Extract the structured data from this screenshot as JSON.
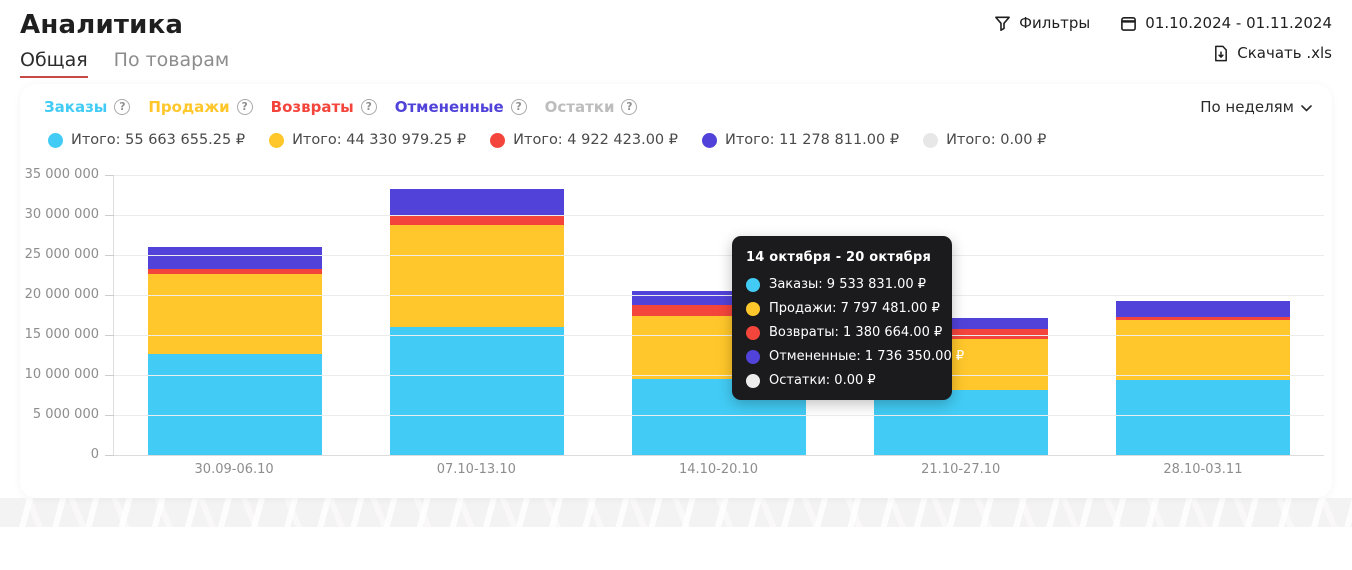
{
  "header": {
    "title": "Аналитика",
    "tabs": [
      {
        "label": "Общая",
        "active": true
      },
      {
        "label": "По товарам",
        "active": false
      }
    ],
    "filters_label": "Фильтры",
    "date_range": "01.10.2024 - 01.11.2024",
    "download_label": "Скачать .xls",
    "accent_color": "#c64a45"
  },
  "panel": {
    "interval_select": "По неделям",
    "metrics": [
      {
        "key": "orders",
        "label": "Заказы",
        "color": "#42CCF5",
        "total": "Итого: 55 663 655.25 ₽",
        "muted": false
      },
      {
        "key": "sales",
        "label": "Продажи",
        "color": "#FFC72B",
        "total": "Итого: 44 330 979.25 ₽",
        "muted": false
      },
      {
        "key": "returns",
        "label": "Возвраты",
        "color": "#F4453C",
        "total": "Итого: 4 922 423.00 ₽",
        "muted": false
      },
      {
        "key": "cancelled",
        "label": "Отмененные",
        "color": "#5143D9",
        "total": "Итого: 11 278 811.00 ₽",
        "muted": false
      },
      {
        "key": "stock",
        "label": "Остатки",
        "color": "#E7E7E7",
        "total": "Итого: 0.00 ₽",
        "muted": true
      }
    ]
  },
  "chart_data": {
    "type": "bar",
    "stacked": true,
    "categories": [
      "30.09-06.10",
      "07.10-13.10",
      "14.10-20.10",
      "21.10-27.10",
      "28.10-03.11"
    ],
    "series": [
      {
        "name": "Заказы",
        "color": "#42CCF5",
        "values": [
          12600000,
          16000000,
          9533831,
          8100000,
          9429824.25
        ]
      },
      {
        "name": "Продажи",
        "color": "#FFC72B",
        "values": [
          10000000,
          12700000,
          7797481,
          6400000,
          7433498.25
        ]
      },
      {
        "name": "Возвраты",
        "color": "#F4453C",
        "values": [
          650000,
          1300000,
          1380664,
          1241759,
          350000
        ]
      },
      {
        "name": "Отмененные",
        "color": "#5143D9",
        "values": [
          2750000,
          3250000,
          1736350,
          1442461,
          2100000
        ]
      },
      {
        "name": "Остатки",
        "color": "#E7E7E7",
        "values": [
          0,
          0,
          0,
          0,
          0
        ]
      }
    ],
    "title": "",
    "xlabel": "",
    "ylabel": "",
    "ylim": [
      0,
      35000000
    ],
    "ytick_labels": [
      "35 000 000",
      "30 000 000",
      "25 000 000",
      "20 000 000",
      "15 000 000",
      "10 000 000",
      "5 000 000",
      "0"
    ],
    "grid": "horizontal",
    "legend_position": "top"
  },
  "tooltip": {
    "title": "14 октября - 20 октября",
    "rows": [
      {
        "label": "Заказы",
        "value": "9 533 831.00 ₽",
        "color": "#42CCF5"
      },
      {
        "label": "Продажи",
        "value": "7 797 481.00 ₽",
        "color": "#FFC72B"
      },
      {
        "label": "Возвраты",
        "value": "1 380 664.00 ₽",
        "color": "#F4453C"
      },
      {
        "label": "Отмененные",
        "value": "1 736 350.00 ₽",
        "color": "#5143D9"
      },
      {
        "label": "Остатки",
        "value": "0.00 ₽",
        "color": "#EDEDED"
      }
    ]
  }
}
